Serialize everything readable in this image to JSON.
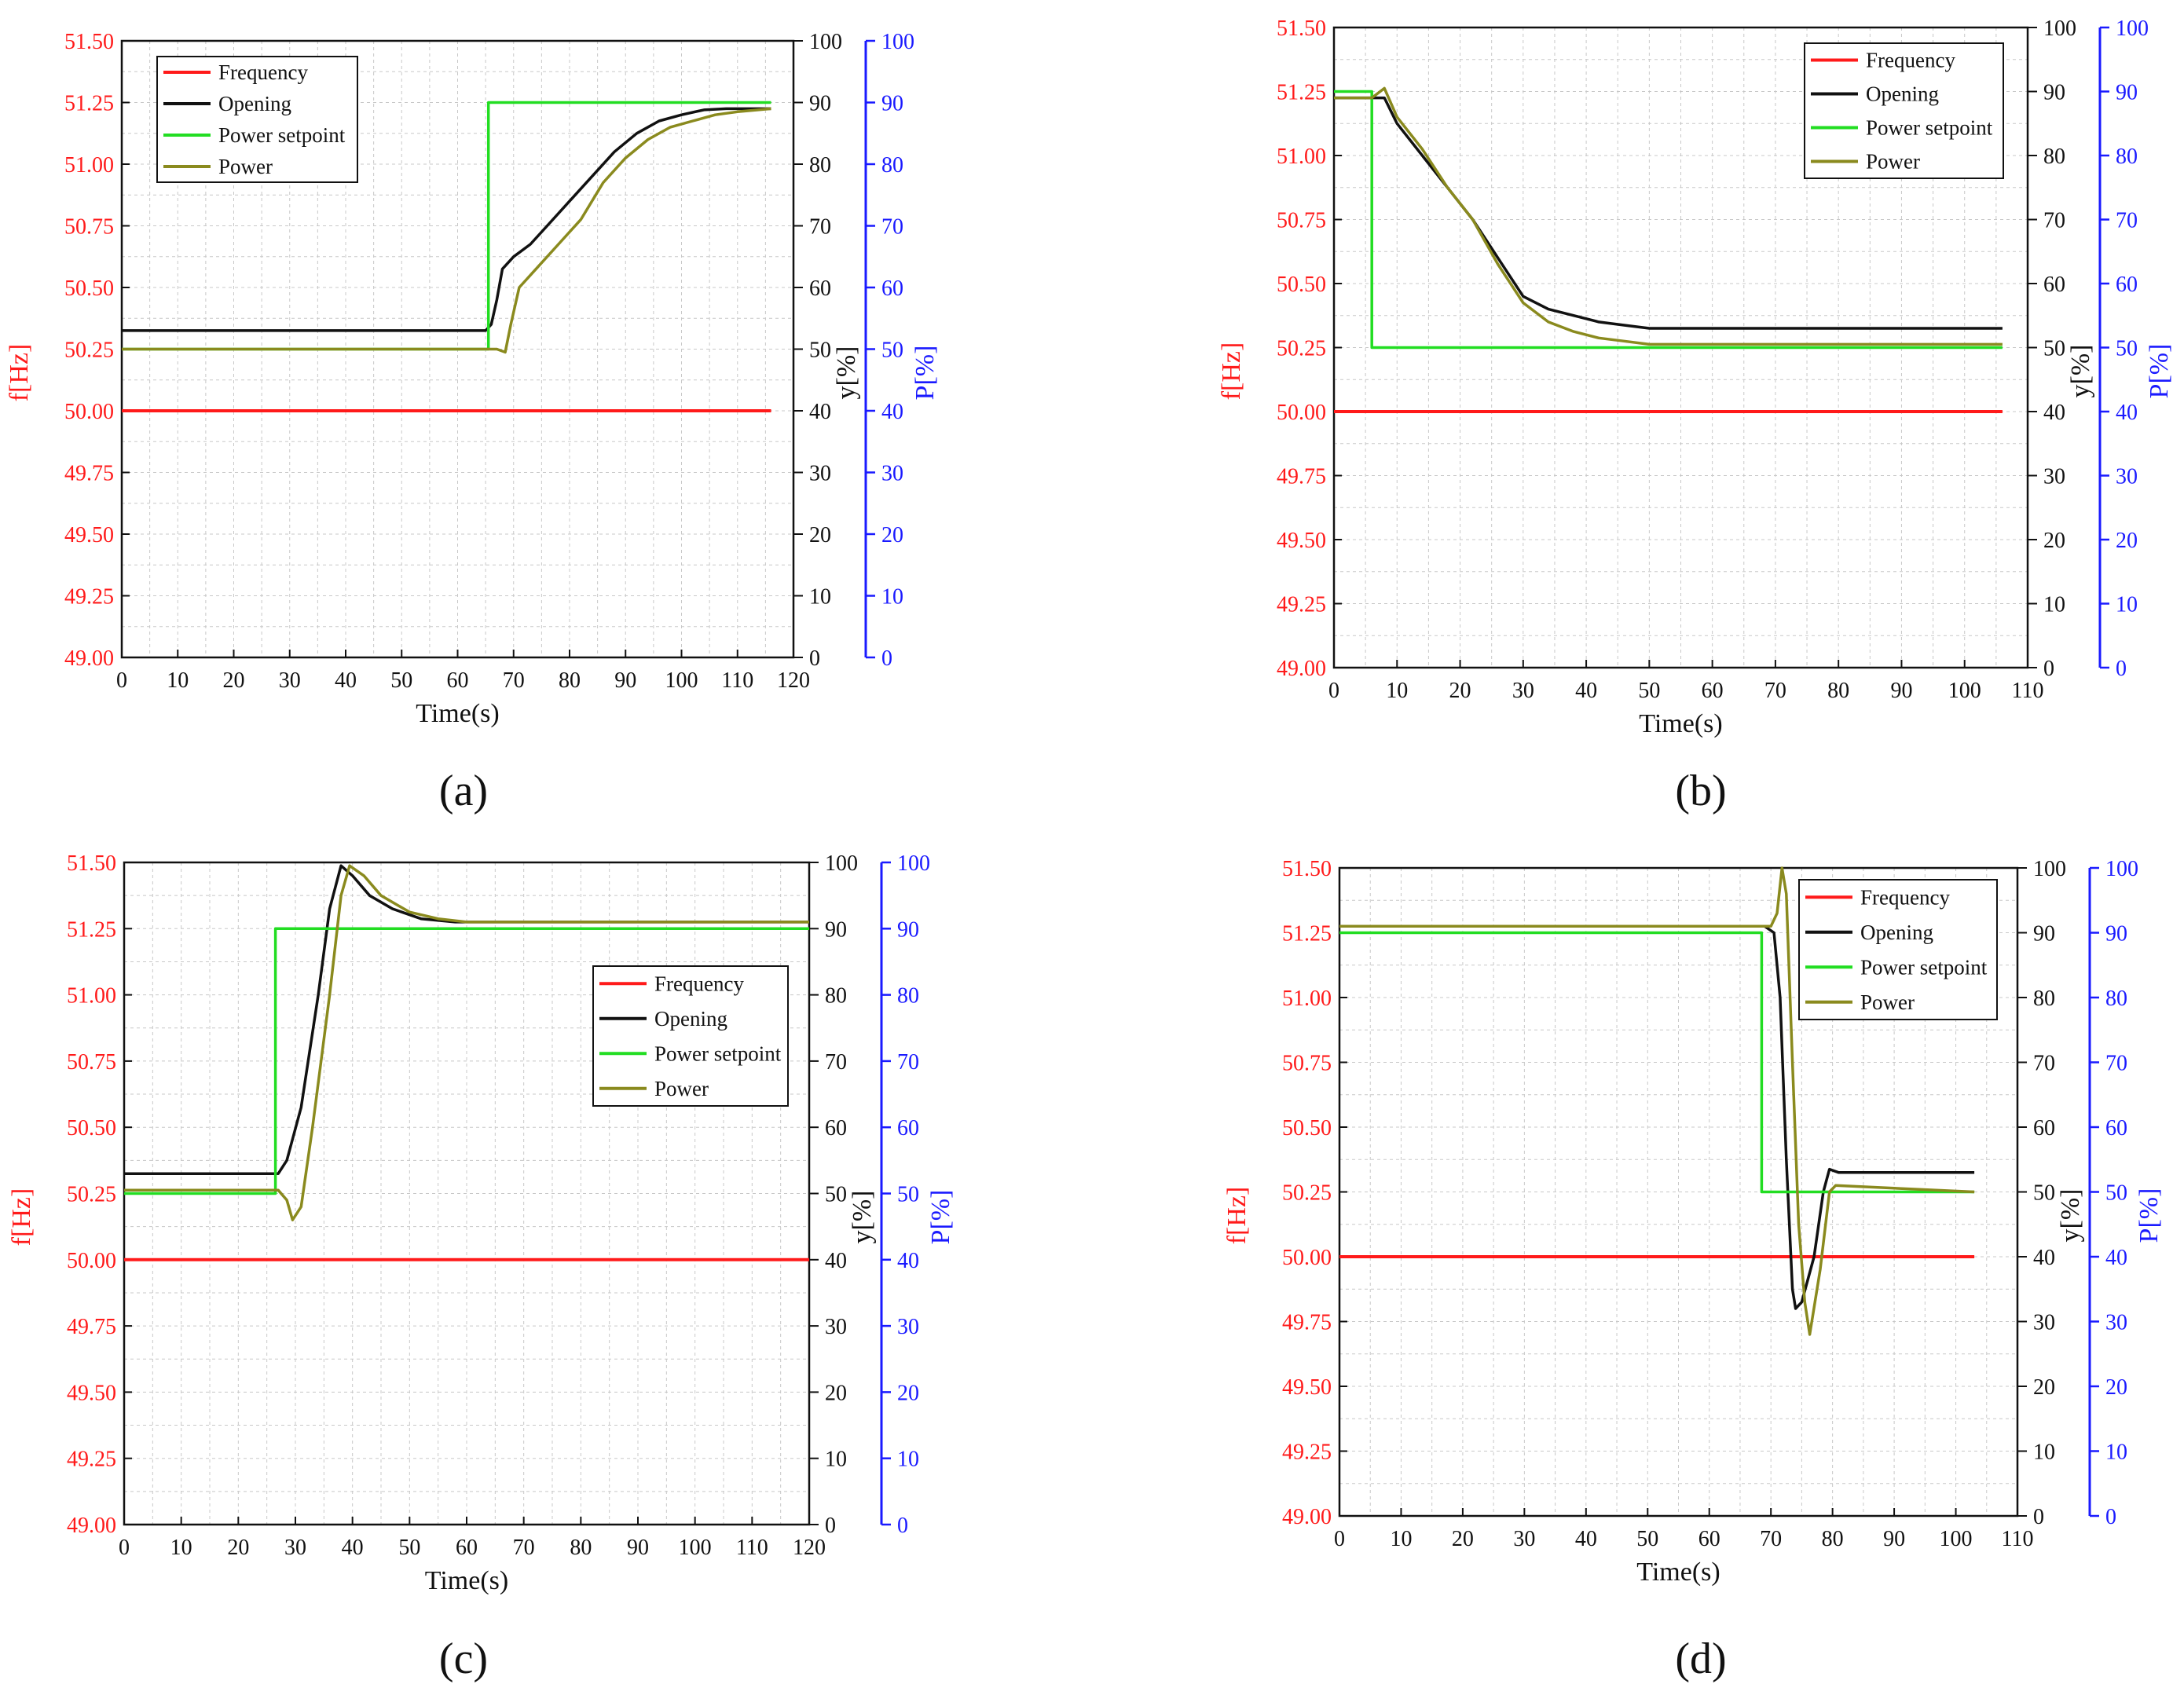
{
  "figure": {
    "captions": [
      "(a)",
      "(b)",
      "(c)",
      "(d)"
    ]
  },
  "colors": {
    "frequency": "#ff1a1a",
    "opening": "#111111",
    "power_setpoint": "#22dd22",
    "power": "#8a8a1e",
    "left_axis": "#ff1a1a",
    "right_axis_p": "#1a1aff",
    "right_axis_y": "#111111",
    "grid": "#c8c8c8"
  },
  "chart_data": [
    {
      "type": "line",
      "panel": "(a)",
      "xlabel": "Time(s)",
      "ylabel_left": "f[Hz]",
      "ylabel_right_y": "y[%]",
      "ylabel_right_p": "P[%]",
      "xlim": [
        0,
        120
      ],
      "xticks": [
        0,
        10,
        20,
        30,
        40,
        50,
        60,
        70,
        80,
        90,
        100,
        110,
        120
      ],
      "ylim_left": [
        49.0,
        51.5
      ],
      "yticks_left": [
        "49.00",
        "49.25",
        "49.50",
        "49.75",
        "50.00",
        "50.25",
        "50.50",
        "50.75",
        "51.00",
        "51.25",
        "51.50"
      ],
      "ylim_right": [
        0,
        100
      ],
      "yticks_right": [
        "0",
        "10",
        "20",
        "30",
        "40",
        "50",
        "60",
        "70",
        "80",
        "90",
        "100"
      ],
      "legend": [
        "Frequency",
        "Opening",
        "Power setpoint",
        "Power"
      ],
      "legend_position": "top-left",
      "series": [
        {
          "name": "Frequency",
          "axis": "left",
          "points": [
            [
              0,
              50.0
            ],
            [
              116,
              50.0
            ]
          ]
        },
        {
          "name": "Opening",
          "axis": "right",
          "points": [
            [
              0,
              53
            ],
            [
              65,
              53
            ],
            [
              66,
              54
            ],
            [
              67,
              58
            ],
            [
              68,
              63
            ],
            [
              70,
              65
            ],
            [
              73,
              67
            ],
            [
              76,
              70
            ],
            [
              80,
              74
            ],
            [
              84,
              78
            ],
            [
              88,
              82
            ],
            [
              92,
              85
            ],
            [
              96,
              87
            ],
            [
              100,
              88
            ],
            [
              104,
              88.8
            ],
            [
              108,
              89
            ],
            [
              116,
              89
            ]
          ]
        },
        {
          "name": "Power setpoint",
          "axis": "right",
          "points": [
            [
              0,
              50
            ],
            [
              65.5,
              50
            ],
            [
              65.5,
              90
            ],
            [
              116,
              90
            ]
          ]
        },
        {
          "name": "Power",
          "axis": "right",
          "points": [
            [
              0,
              50
            ],
            [
              67,
              50
            ],
            [
              68.5,
              49.5
            ],
            [
              69.5,
              54
            ],
            [
              71,
              60
            ],
            [
              74,
              63
            ],
            [
              78,
              67
            ],
            [
              82,
              71
            ],
            [
              86,
              77
            ],
            [
              90,
              81
            ],
            [
              94,
              84
            ],
            [
              98,
              86
            ],
            [
              102,
              87
            ],
            [
              106,
              88
            ],
            [
              110,
              88.5
            ],
            [
              116,
              89
            ]
          ]
        }
      ]
    },
    {
      "type": "line",
      "panel": "(b)",
      "xlabel": "Time(s)",
      "ylabel_left": "f[Hz]",
      "ylabel_right_y": "y[%]",
      "ylabel_right_p": "P[%]",
      "xlim": [
        0,
        110
      ],
      "xticks": [
        0,
        10,
        20,
        30,
        40,
        50,
        60,
        70,
        80,
        90,
        100,
        110
      ],
      "ylim_left": [
        49.0,
        51.5
      ],
      "yticks_left": [
        "49.00",
        "49.25",
        "49.50",
        "49.75",
        "50.00",
        "50.25",
        "50.50",
        "50.75",
        "51.00",
        "51.25",
        "51.50"
      ],
      "ylim_right": [
        0,
        100
      ],
      "yticks_right": [
        "0",
        "10",
        "20",
        "30",
        "40",
        "50",
        "60",
        "70",
        "80",
        "90",
        "100"
      ],
      "legend": [
        "Frequency",
        "Opening",
        "Power setpoint",
        "Power"
      ],
      "legend_position": "top-right",
      "series": [
        {
          "name": "Frequency",
          "axis": "left",
          "points": [
            [
              0,
              50.0
            ],
            [
              106,
              50.0
            ]
          ]
        },
        {
          "name": "Opening",
          "axis": "right",
          "points": [
            [
              0,
              89
            ],
            [
              6,
              89
            ],
            [
              8,
              89
            ],
            [
              10,
              85
            ],
            [
              14,
              80
            ],
            [
              18,
              75
            ],
            [
              22,
              70
            ],
            [
              26,
              64
            ],
            [
              30,
              58
            ],
            [
              34,
              56
            ],
            [
              38,
              55
            ],
            [
              42,
              54
            ],
            [
              46,
              53.5
            ],
            [
              50,
              53
            ],
            [
              106,
              53
            ]
          ]
        },
        {
          "name": "Power setpoint",
          "axis": "right",
          "points": [
            [
              0,
              90
            ],
            [
              6,
              90
            ],
            [
              6,
              50
            ],
            [
              106,
              50
            ]
          ]
        },
        {
          "name": "Power",
          "axis": "right",
          "points": [
            [
              0,
              89
            ],
            [
              6,
              89
            ],
            [
              8,
              90.5
            ],
            [
              10,
              86
            ],
            [
              14,
              81
            ],
            [
              18,
              75
            ],
            [
              22,
              70
            ],
            [
              26,
              63
            ],
            [
              30,
              57
            ],
            [
              34,
              54
            ],
            [
              38,
              52.5
            ],
            [
              42,
              51.5
            ],
            [
              46,
              51
            ],
            [
              50,
              50.5
            ],
            [
              106,
              50.5
            ]
          ]
        }
      ]
    },
    {
      "type": "line",
      "panel": "(c)",
      "xlabel": "Time(s)",
      "ylabel_left": "f[Hz]",
      "ylabel_right_y": "y[%]",
      "ylabel_right_p": "P[%]",
      "xlim": [
        0,
        120
      ],
      "xticks": [
        0,
        10,
        20,
        30,
        40,
        50,
        60,
        70,
        80,
        90,
        100,
        110,
        120
      ],
      "ylim_left": [
        49.0,
        51.5
      ],
      "yticks_left": [
        "49.00",
        "49.25",
        "49.50",
        "49.75",
        "50.00",
        "50.25",
        "50.50",
        "50.75",
        "51.00",
        "51.25",
        "51.50"
      ],
      "ylim_right": [
        0,
        100
      ],
      "yticks_right": [
        "0",
        "10",
        "20",
        "30",
        "40",
        "50",
        "60",
        "70",
        "80",
        "90",
        "100"
      ],
      "legend": [
        "Frequency",
        "Opening",
        "Power setpoint",
        "Power"
      ],
      "legend_position": "center-right",
      "series": [
        {
          "name": "Frequency",
          "axis": "left",
          "points": [
            [
              0,
              50.0
            ],
            [
              120,
              50.0
            ]
          ]
        },
        {
          "name": "Opening",
          "axis": "right",
          "points": [
            [
              0,
              53
            ],
            [
              27,
              53
            ],
            [
              28.5,
              55
            ],
            [
              31,
              63
            ],
            [
              34,
              80
            ],
            [
              36,
              93
            ],
            [
              38,
              99.5
            ],
            [
              40,
              98
            ],
            [
              43,
              95
            ],
            [
              47,
              93
            ],
            [
              52,
              91.5
            ],
            [
              58,
              91
            ],
            [
              120,
              91
            ]
          ]
        },
        {
          "name": "Power setpoint",
          "axis": "right",
          "points": [
            [
              0,
              50
            ],
            [
              26.5,
              50
            ],
            [
              26.5,
              90
            ],
            [
              120,
              90
            ]
          ]
        },
        {
          "name": "Power",
          "axis": "right",
          "points": [
            [
              0,
              50.5
            ],
            [
              27,
              50.5
            ],
            [
              28.5,
              49
            ],
            [
              29.5,
              46
            ],
            [
              31,
              48
            ],
            [
              33,
              60
            ],
            [
              36,
              80
            ],
            [
              38,
              95
            ],
            [
              39.5,
              99.5
            ],
            [
              42,
              98
            ],
            [
              45,
              95
            ],
            [
              50,
              92.5
            ],
            [
              55,
              91.5
            ],
            [
              60,
              91
            ],
            [
              120,
              91
            ]
          ]
        }
      ]
    },
    {
      "type": "line",
      "panel": "(d)",
      "xlabel": "Time(s)",
      "ylabel_left": "f[Hz]",
      "ylabel_right_y": "y[%]",
      "ylabel_right_p": "P[%]",
      "xlim": [
        0,
        110
      ],
      "xticks": [
        0,
        10,
        20,
        30,
        40,
        50,
        60,
        70,
        80,
        90,
        100,
        110
      ],
      "ylim_left": [
        49.0,
        51.5
      ],
      "yticks_left": [
        "49.00",
        "49.25",
        "49.50",
        "49.75",
        "50.00",
        "50.25",
        "50.50",
        "50.75",
        "51.00",
        "51.25",
        "51.50"
      ],
      "ylim_right": [
        0,
        100
      ],
      "yticks_right": [
        "0",
        "10",
        "20",
        "30",
        "40",
        "50",
        "60",
        "70",
        "80",
        "90",
        "100"
      ],
      "legend": [
        "Frequency",
        "Opening",
        "Power setpoint",
        "Power"
      ],
      "legend_position": "top-right",
      "series": [
        {
          "name": "Frequency",
          "axis": "left",
          "points": [
            [
              0,
              50.0
            ],
            [
              103,
              50.0
            ]
          ]
        },
        {
          "name": "Opening",
          "axis": "right",
          "points": [
            [
              0,
              91
            ],
            [
              69,
              91
            ],
            [
              70.5,
              90
            ],
            [
              71.5,
              80
            ],
            [
              72.5,
              55
            ],
            [
              73.5,
              35
            ],
            [
              74,
              32
            ],
            [
              75,
              33
            ],
            [
              77,
              40
            ],
            [
              78.5,
              50
            ],
            [
              79.5,
              53.5
            ],
            [
              81,
              53
            ],
            [
              103,
              53
            ]
          ]
        },
        {
          "name": "Power setpoint",
          "axis": "right",
          "points": [
            [
              0,
              90
            ],
            [
              68.5,
              90
            ],
            [
              68.5,
              50
            ],
            [
              103,
              50
            ]
          ]
        },
        {
          "name": "Power",
          "axis": "right",
          "points": [
            [
              0,
              91
            ],
            [
              70,
              91
            ],
            [
              71,
              93
            ],
            [
              71.8,
              100
            ],
            [
              72.5,
              96
            ],
            [
              73.5,
              70
            ],
            [
              74.5,
              45
            ],
            [
              75.5,
              33
            ],
            [
              76.3,
              28
            ],
            [
              78,
              38
            ],
            [
              79.5,
              50
            ],
            [
              80.5,
              51
            ],
            [
              103,
              50
            ]
          ]
        }
      ]
    }
  ]
}
